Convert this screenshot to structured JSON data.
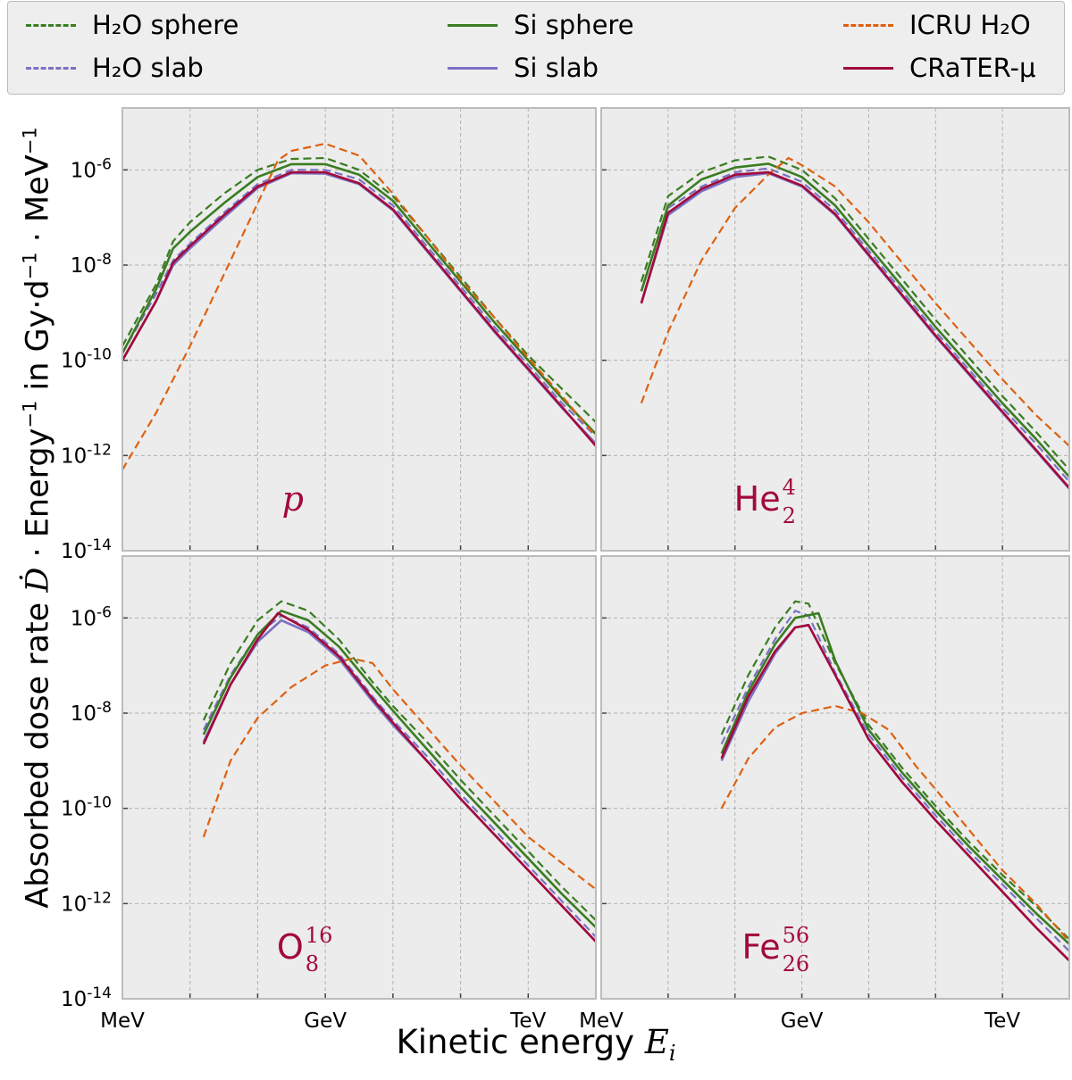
{
  "legend": [
    {
      "label": "H₂O sphere",
      "color": "#3a7d22",
      "dash": true
    },
    {
      "label": "H₂O slab",
      "color": "#7b72c4",
      "dash": true
    },
    {
      "label": "Si sphere",
      "color": "#3a7d22",
      "dash": false
    },
    {
      "label": "Si slab",
      "color": "#7b72c4",
      "dash": false
    },
    {
      "label": "ICRU H₂O",
      "color": "#dd6111",
      "dash": true
    },
    {
      "label": "CRaTER-μ",
      "color": "#a3093a",
      "dash": false
    }
  ],
  "axes": {
    "ylabel_prefix": "Absorbed dose rate",
    "ylabel_symbol": "Ḋ",
    "ylabel_mid": "· Energy",
    "ylabel_sup1": "−1",
    "ylabel_in": "in Gy·d",
    "ylabel_sup2": "−1",
    "ylabel_mev": "· MeV",
    "ylabel_sup3": "−1",
    "xlabel_prefix": "Kinetic energy",
    "xlabel_symbol": "E",
    "xlabel_sub": "i",
    "y_ticks": [
      {
        "exp": -6,
        "label": "10-6"
      },
      {
        "exp": -8,
        "label": "10-8"
      },
      {
        "exp": -10,
        "label": "10-10"
      },
      {
        "exp": -12,
        "label": "10-12"
      },
      {
        "exp": -14,
        "label": "10-14"
      }
    ],
    "x_ticks": [
      {
        "exp": 0,
        "label": "MeV"
      },
      {
        "exp": 3,
        "label": "GeV"
      },
      {
        "exp": 6,
        "label": "TeV"
      }
    ],
    "x_range_log10_MeV": [
      0,
      7
    ],
    "y_range_log10": [
      -14,
      -4.7
    ],
    "grid": true
  },
  "colors": {
    "h2o_sphere": "#3a7d22",
    "h2o_slab": "#7b72c4",
    "si_sphere": "#3a7d22",
    "si_slab": "#7b72c4",
    "icru": "#dd6111",
    "crater": "#a3093a",
    "panel_bg": "#ececec",
    "grid": "#b2b2b2",
    "spine": "#bcbcbc"
  },
  "chart_data": [
    {
      "type": "line",
      "particle": {
        "symbol": "p",
        "charge": "",
        "mass": ""
      },
      "x_unit": "log10(E / MeV)",
      "y_unit": "log10(dose rate)",
      "series": [
        {
          "name": "H₂O sphere",
          "x": [
            0,
            0.5,
            0.75,
            1.0,
            1.5,
            2.0,
            2.5,
            3.0,
            3.5,
            4.0,
            4.5,
            5.0,
            5.5,
            6.0,
            6.5,
            7.0
          ],
          "y": [
            -9.7,
            -8.4,
            -7.5,
            -7.1,
            -6.5,
            -6.0,
            -5.77,
            -5.75,
            -6.0,
            -6.55,
            -7.4,
            -8.25,
            -9.1,
            -9.9,
            -10.6,
            -11.3
          ]
        },
        {
          "name": "H₂O slab",
          "x": [
            0,
            0.5,
            0.75,
            1.0,
            1.5,
            2.0,
            2.5,
            3.0,
            3.5,
            4.0,
            4.5,
            5.0,
            5.5,
            6.0,
            6.5,
            7.0
          ],
          "y": [
            -9.85,
            -8.6,
            -7.9,
            -7.55,
            -6.9,
            -6.3,
            -6.0,
            -6.0,
            -6.2,
            -6.75,
            -7.6,
            -8.45,
            -9.3,
            -10.1,
            -10.9,
            -11.6
          ]
        },
        {
          "name": "Si sphere",
          "x": [
            0,
            0.5,
            0.75,
            1.0,
            1.5,
            2.0,
            2.5,
            3.0,
            3.5,
            4.0,
            4.5,
            5.0,
            5.5,
            6.0,
            6.5,
            7.0
          ],
          "y": [
            -9.85,
            -8.5,
            -7.65,
            -7.3,
            -6.7,
            -6.15,
            -5.88,
            -5.88,
            -6.1,
            -6.65,
            -7.5,
            -8.35,
            -9.2,
            -10.0,
            -10.8,
            -11.55
          ]
        },
        {
          "name": "Si slab",
          "x": [
            0,
            0.5,
            0.75,
            1.0,
            1.5,
            2.0,
            2.5,
            3.0,
            3.5,
            4.0,
            4.5,
            5.0,
            5.5,
            6.0,
            6.5,
            7.0
          ],
          "y": [
            -10.0,
            -8.75,
            -8.0,
            -7.65,
            -7.0,
            -6.38,
            -6.07,
            -6.08,
            -6.3,
            -6.85,
            -7.7,
            -8.55,
            -9.4,
            -10.2,
            -11.0,
            -11.75
          ]
        },
        {
          "name": "ICRU H₂O",
          "x": [
            0,
            0.5,
            1.0,
            1.5,
            2.0,
            2.3,
            2.5,
            3.0,
            3.5,
            4.0,
            4.5,
            5.0,
            5.5,
            6.0,
            6.5,
            7.0
          ],
          "y": [
            -12.3,
            -11.1,
            -9.7,
            -8.2,
            -6.7,
            -5.8,
            -5.6,
            -5.45,
            -5.7,
            -6.5,
            -7.4,
            -8.3,
            -9.1,
            -9.95,
            -10.75,
            -11.6
          ]
        },
        {
          "name": "CRaTER-μ",
          "x": [
            0,
            0.5,
            0.75,
            1.0,
            1.5,
            2.0,
            2.5,
            3.0,
            3.5,
            4.0,
            4.5,
            5.0,
            5.5,
            6.0,
            6.5,
            7.0
          ],
          "y": [
            -10.0,
            -8.75,
            -7.95,
            -7.6,
            -6.95,
            -6.35,
            -6.05,
            -6.05,
            -6.28,
            -6.83,
            -7.68,
            -8.53,
            -9.38,
            -10.18,
            -10.98,
            -11.8
          ]
        }
      ]
    },
    {
      "type": "line",
      "particle": {
        "symbol": "He",
        "charge": "2",
        "mass": "4"
      },
      "x_unit": "log10(E / MeV)",
      "y_unit": "log10(dose rate)",
      "series": [
        {
          "name": "H₂O sphere",
          "x": [
            0.6,
            1.0,
            1.5,
            2.0,
            2.5,
            3.0,
            3.5,
            4.0,
            4.5,
            5.0,
            5.5,
            6.0,
            6.5,
            7.0
          ],
          "y": [
            -8.35,
            -6.55,
            -6.05,
            -5.8,
            -5.72,
            -6.0,
            -6.6,
            -7.45,
            -8.3,
            -9.15,
            -9.95,
            -10.75,
            -11.5,
            -12.3
          ]
        },
        {
          "name": "H₂O slab",
          "x": [
            0.6,
            1.0,
            1.5,
            2.0,
            2.5,
            3.0,
            3.5,
            4.0,
            4.5,
            5.0,
            5.5,
            6.0,
            6.5,
            7.0
          ],
          "y": [
            -8.55,
            -6.8,
            -6.35,
            -6.05,
            -5.97,
            -6.25,
            -6.85,
            -7.7,
            -8.55,
            -9.4,
            -10.2,
            -11.0,
            -11.75,
            -12.55
          ]
        },
        {
          "name": "Si sphere",
          "x": [
            0.6,
            1.0,
            1.5,
            2.0,
            2.5,
            3.0,
            3.5,
            4.0,
            4.5,
            5.0,
            5.5,
            6.0,
            6.5,
            7.0
          ],
          "y": [
            -8.55,
            -6.75,
            -6.2,
            -5.95,
            -5.87,
            -6.15,
            -6.75,
            -7.6,
            -8.45,
            -9.3,
            -10.1,
            -10.9,
            -11.65,
            -12.45
          ]
        },
        {
          "name": "Si slab",
          "x": [
            0.6,
            1.0,
            1.5,
            2.0,
            2.5,
            3.0,
            3.5,
            4.0,
            4.5,
            5.0,
            5.5,
            6.0,
            6.5,
            7.0
          ],
          "y": [
            -8.8,
            -6.95,
            -6.45,
            -6.15,
            -6.07,
            -6.35,
            -6.95,
            -7.8,
            -8.65,
            -9.5,
            -10.3,
            -11.1,
            -11.9,
            -12.7
          ]
        },
        {
          "name": "ICRU H₂O",
          "x": [
            0.6,
            1.0,
            1.5,
            2.0,
            2.5,
            2.8,
            3.0,
            3.5,
            4.0,
            4.5,
            5.0,
            5.5,
            6.0,
            6.5,
            7.0
          ],
          "y": [
            -10.9,
            -9.4,
            -7.9,
            -6.8,
            -6.1,
            -5.75,
            -5.9,
            -6.35,
            -7.1,
            -7.95,
            -8.8,
            -9.6,
            -10.4,
            -11.15,
            -11.8
          ]
        },
        {
          "name": "CRaTER-μ",
          "x": [
            0.6,
            1.0,
            1.5,
            2.0,
            2.5,
            3.0,
            3.5,
            4.0,
            4.5,
            5.0,
            5.5,
            6.0,
            6.5,
            7.0
          ],
          "y": [
            -8.8,
            -6.9,
            -6.4,
            -6.1,
            -6.05,
            -6.33,
            -6.93,
            -7.78,
            -8.63,
            -9.48,
            -10.28,
            -11.08,
            -11.88,
            -12.68
          ]
        }
      ]
    },
    {
      "type": "line",
      "particle": {
        "symbol": "O",
        "charge": "8",
        "mass": "16"
      },
      "x_unit": "log10(E / MeV)",
      "y_unit": "log10(dose rate)",
      "series": [
        {
          "name": "H₂O sphere",
          "x": [
            1.2,
            1.6,
            2.0,
            2.35,
            2.75,
            3.2,
            3.7,
            4.0,
            4.5,
            5.0,
            5.5,
            6.0,
            6.5,
            7.0
          ],
          "y": [
            -8.15,
            -6.95,
            -6.05,
            -5.65,
            -5.85,
            -6.45,
            -7.35,
            -7.85,
            -8.6,
            -9.4,
            -10.15,
            -10.9,
            -11.65,
            -12.35
          ]
        },
        {
          "name": "H₂O slab",
          "x": [
            1.2,
            1.6,
            2.0,
            2.35,
            2.75,
            3.2,
            3.7,
            4.0,
            4.5,
            5.0,
            5.5,
            6.0,
            6.5,
            7.0
          ],
          "y": [
            -8.35,
            -7.2,
            -6.35,
            -5.95,
            -6.2,
            -6.75,
            -7.65,
            -8.15,
            -8.9,
            -9.7,
            -10.45,
            -11.2,
            -11.95,
            -12.7
          ]
        },
        {
          "name": "Si sphere",
          "x": [
            1.2,
            1.6,
            2.0,
            2.35,
            2.75,
            3.2,
            3.7,
            4.0,
            4.5,
            5.0,
            5.5,
            6.0,
            6.5,
            7.0
          ],
          "y": [
            -8.45,
            -7.25,
            -6.35,
            -5.85,
            -6.05,
            -6.6,
            -7.45,
            -7.95,
            -8.75,
            -9.55,
            -10.3,
            -11.05,
            -11.8,
            -12.5
          ]
        },
        {
          "name": "Si slab",
          "x": [
            1.2,
            1.6,
            2.0,
            2.35,
            2.75,
            3.2,
            3.7,
            4.0,
            4.5,
            5.0,
            5.5,
            6.0,
            6.5,
            7.0
          ],
          "y": [
            -8.6,
            -7.4,
            -6.5,
            -6.05,
            -6.3,
            -6.85,
            -7.75,
            -8.25,
            -9.0,
            -9.8,
            -10.55,
            -11.3,
            -12.05,
            -12.8
          ]
        },
        {
          "name": "ICRU H₂O",
          "x": [
            1.2,
            1.6,
            2.0,
            2.5,
            3.0,
            3.4,
            3.7,
            4.0,
            4.5,
            5.0,
            5.5,
            6.0,
            6.5,
            7.0
          ],
          "y": [
            -10.6,
            -9.0,
            -8.1,
            -7.45,
            -7.0,
            -6.85,
            -6.95,
            -7.5,
            -8.3,
            -9.1,
            -9.85,
            -10.6,
            -11.15,
            -11.7
          ]
        },
        {
          "name": "CRaTER-μ",
          "x": [
            1.2,
            1.6,
            2.0,
            2.3,
            2.75,
            3.2,
            3.7,
            4.0,
            4.5,
            5.0,
            5.5,
            6.0,
            6.5,
            7.0
          ],
          "y": [
            -8.65,
            -7.4,
            -6.45,
            -5.9,
            -6.25,
            -6.8,
            -7.7,
            -8.2,
            -9.0,
            -9.8,
            -10.55,
            -11.3,
            -12.05,
            -12.8
          ]
        }
      ]
    },
    {
      "type": "line",
      "particle": {
        "symbol": "Fe",
        "charge": "26",
        "mass": "56"
      },
      "x_unit": "log10(E / MeV)",
      "y_unit": "log10(dose rate)",
      "series": [
        {
          "name": "H₂O sphere",
          "x": [
            1.8,
            2.2,
            2.6,
            2.9,
            3.1,
            3.5,
            4.0,
            4.5,
            5.0,
            5.5,
            6.0,
            6.5,
            7.0
          ],
          "y": [
            -8.45,
            -7.2,
            -6.2,
            -5.65,
            -5.7,
            -6.95,
            -8.25,
            -9.15,
            -9.95,
            -10.7,
            -11.4,
            -12.05,
            -12.75
          ]
        },
        {
          "name": "H₂O slab",
          "x": [
            1.8,
            2.2,
            2.6,
            2.9,
            3.1,
            3.5,
            4.0,
            4.5,
            5.0,
            5.5,
            6.0,
            6.5,
            7.0
          ],
          "y": [
            -8.65,
            -7.45,
            -6.45,
            -5.85,
            -5.95,
            -7.15,
            -8.45,
            -9.35,
            -10.15,
            -10.9,
            -11.6,
            -12.3,
            -13.0
          ]
        },
        {
          "name": "Si sphere",
          "x": [
            1.8,
            2.2,
            2.6,
            2.9,
            3.25,
            3.5,
            4.0,
            4.5,
            5.0,
            5.5,
            6.0,
            6.5,
            7.0
          ],
          "y": [
            -8.85,
            -7.55,
            -6.55,
            -6.0,
            -5.9,
            -6.9,
            -8.35,
            -9.25,
            -10.05,
            -10.8,
            -11.5,
            -12.2,
            -12.85
          ]
        },
        {
          "name": "Si slab",
          "x": [
            1.8,
            2.2,
            2.6,
            2.9,
            3.1,
            3.5,
            4.0,
            4.5,
            5.0,
            5.5,
            6.0,
            6.5,
            7.0
          ],
          "y": [
            -9.0,
            -7.75,
            -6.75,
            -6.2,
            -6.15,
            -7.2,
            -8.55,
            -9.45,
            -10.25,
            -11.0,
            -11.75,
            -12.5,
            -13.2
          ]
        },
        {
          "name": "ICRU H₂O",
          "x": [
            1.8,
            2.2,
            2.6,
            3.0,
            3.5,
            3.9,
            4.3,
            4.7,
            5.0,
            5.5,
            6.0,
            6.5,
            7.0
          ],
          "y": [
            -10.0,
            -8.95,
            -8.3,
            -8.0,
            -7.85,
            -8.0,
            -8.35,
            -9.1,
            -9.6,
            -10.45,
            -11.3,
            -12.0,
            -12.8
          ]
        },
        {
          "name": "CRaTER-μ",
          "x": [
            1.8,
            2.2,
            2.6,
            2.9,
            3.1,
            3.5,
            4.0,
            4.5,
            5.0,
            5.5,
            6.0,
            6.5,
            7.0
          ],
          "y": [
            -8.95,
            -7.65,
            -6.7,
            -6.2,
            -6.15,
            -7.2,
            -8.55,
            -9.45,
            -10.25,
            -11.0,
            -11.75,
            -12.5,
            -13.2
          ]
        }
      ]
    }
  ]
}
